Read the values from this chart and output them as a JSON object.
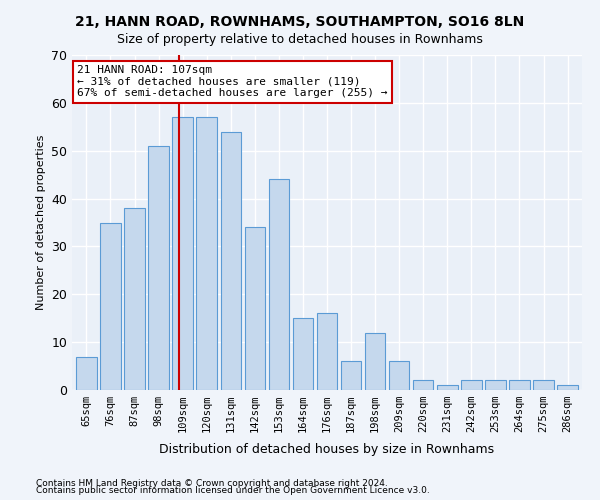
{
  "title1": "21, HANN ROAD, ROWNHAMS, SOUTHAMPTON, SO16 8LN",
  "title2": "Size of property relative to detached houses in Rownhams",
  "xlabel": "Distribution of detached houses by size in Rownhams",
  "ylabel": "Number of detached properties",
  "categories": [
    "65sqm",
    "76sqm",
    "87sqm",
    "98sqm",
    "109sqm",
    "120sqm",
    "131sqm",
    "142sqm",
    "153sqm",
    "164sqm",
    "176sqm",
    "187sqm",
    "198sqm",
    "209sqm",
    "220sqm",
    "231sqm",
    "242sqm",
    "253sqm",
    "264sqm",
    "275sqm",
    "286sqm"
  ],
  "values": [
    7,
    35,
    38,
    51,
    57,
    57,
    54,
    34,
    44,
    15,
    16,
    6,
    12,
    6,
    2,
    1,
    2,
    2,
    2,
    2,
    1
  ],
  "bar_color": "#c5d8ed",
  "bar_edge_color": "#5b9bd5",
  "bg_color": "#eaf0f8",
  "grid_color": "#ffffff",
  "vline_x_index": 4,
  "vline_color": "#cc0000",
  "annotation_text": "21 HANN ROAD: 107sqm\n← 31% of detached houses are smaller (119)\n67% of semi-detached houses are larger (255) →",
  "annotation_box_color": "#ffffff",
  "annotation_box_edge": "#cc0000",
  "ylim": [
    0,
    70
  ],
  "footnote1": "Contains HM Land Registry data © Crown copyright and database right 2024.",
  "footnote2": "Contains public sector information licensed under the Open Government Licence v3.0."
}
